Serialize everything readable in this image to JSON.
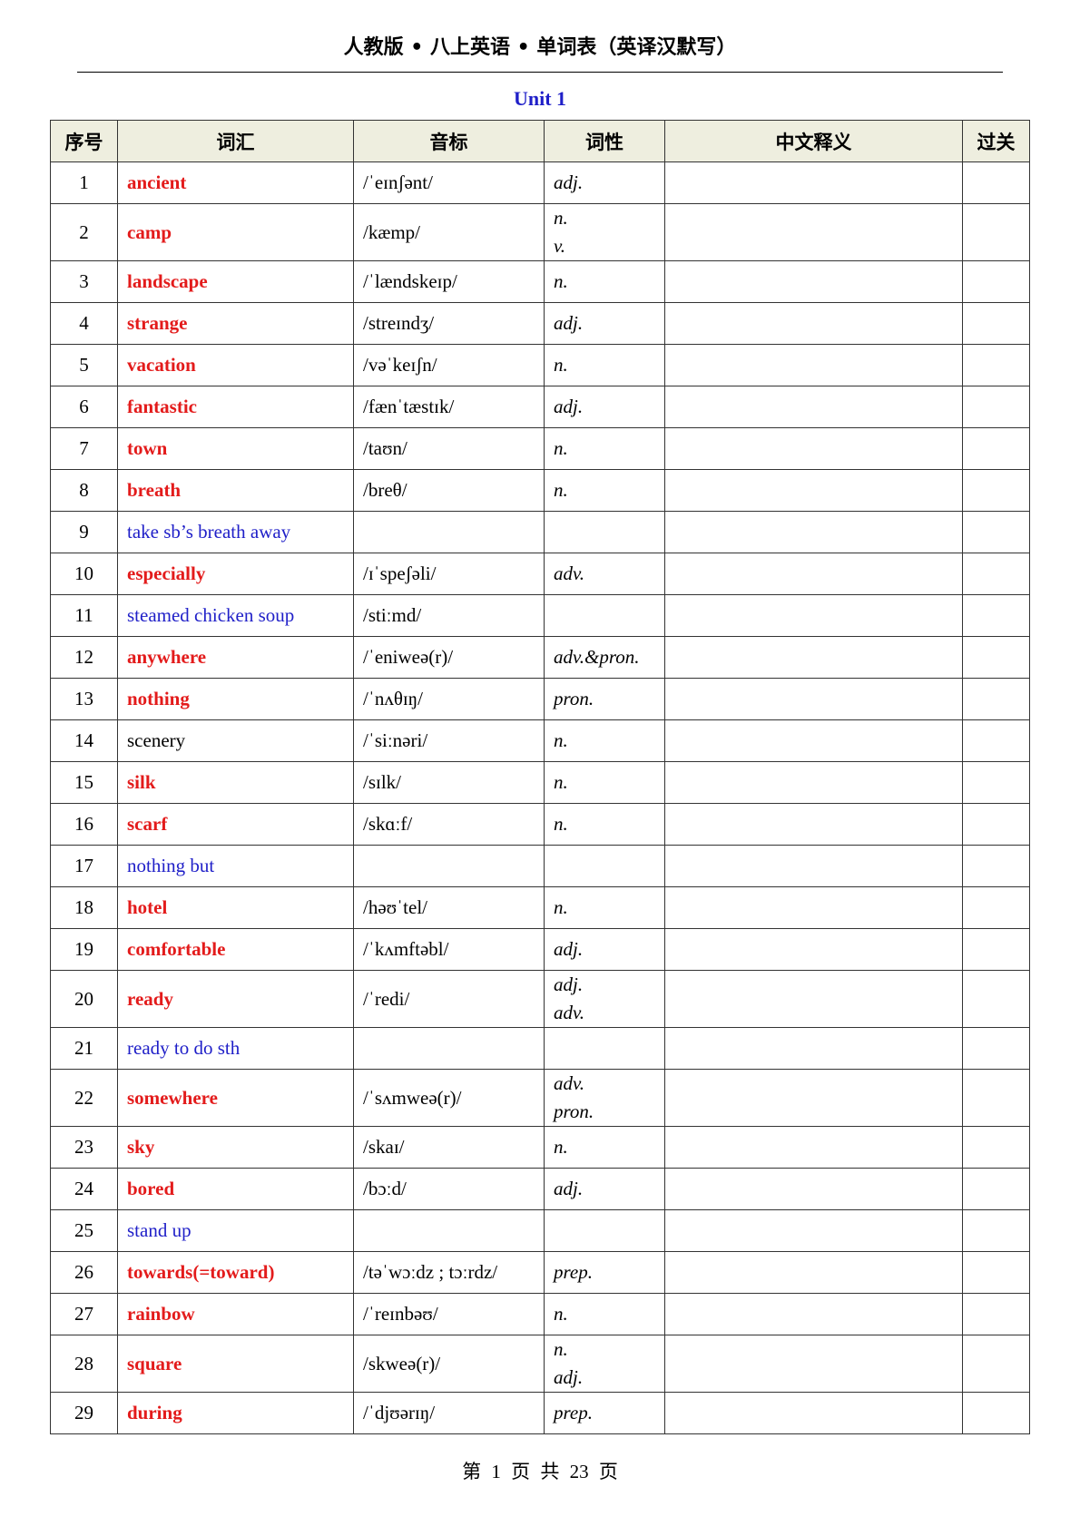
{
  "document": {
    "title": "人教版 • 八上英语 • 单词表（英译汉默写）",
    "unit": "Unit 1",
    "footer": "第 1 页 共 23 页"
  },
  "colors": {
    "bold_word": "#e31b1b",
    "phrase": "#1f1fc8",
    "header_bg": "#eeeedf"
  },
  "table": {
    "headers": [
      "序号",
      "词汇",
      "音标",
      "词性",
      "中文释义",
      "过关"
    ],
    "rows": [
      {
        "no": "1",
        "word": "ancient",
        "style": "red",
        "phonetic": "/ˈeɪnʃənt/",
        "pos": [
          "adj."
        ]
      },
      {
        "no": "2",
        "word": "camp",
        "style": "red",
        "phonetic": "/kæmp/",
        "pos": [
          "n.",
          "v."
        ]
      },
      {
        "no": "3",
        "word": "landscape",
        "style": "red",
        "phonetic": "/ˈlændskeɪp/",
        "pos": [
          "n."
        ]
      },
      {
        "no": "4",
        "word": "strange",
        "style": "red",
        "phonetic": "/streɪndʒ/",
        "pos": [
          "adj."
        ]
      },
      {
        "no": "5",
        "word": "vacation",
        "style": "red",
        "phonetic": "/vəˈkeɪʃn/",
        "pos": [
          "n."
        ]
      },
      {
        "no": "6",
        "word": "fantastic",
        "style": "red",
        "phonetic": "/fænˈtæstɪk/",
        "pos": [
          "adj."
        ]
      },
      {
        "no": "7",
        "word": "town",
        "style": "red",
        "phonetic": "/taʊn/",
        "pos": [
          "n."
        ]
      },
      {
        "no": "8",
        "word": "breath",
        "style": "red",
        "phonetic": "/breθ/",
        "pos": [
          "n."
        ]
      },
      {
        "no": "9",
        "word": "take sb’s breath away",
        "style": "blue",
        "phonetic": "",
        "pos": []
      },
      {
        "no": "10",
        "word": "especially",
        "style": "red",
        "phonetic": "/ɪˈspeʃəli/",
        "pos": [
          "adv."
        ]
      },
      {
        "no": "11",
        "word": "steamed chicken soup",
        "style": "blue",
        "phonetic": "/stiːmd/",
        "pos": []
      },
      {
        "no": "12",
        "word": "anywhere",
        "style": "red",
        "phonetic": "/ˈeniweə(r)/",
        "pos": [
          "adv.&pron."
        ]
      },
      {
        "no": "13",
        "word": "nothing",
        "style": "red",
        "phonetic": "/ˈnʌθɪŋ/",
        "pos": [
          "pron."
        ]
      },
      {
        "no": "14",
        "word": "scenery",
        "style": "black",
        "phonetic": "/ˈsiːnəri/",
        "pos": [
          "n."
        ]
      },
      {
        "no": "15",
        "word": "silk",
        "style": "red",
        "phonetic": "/sɪlk/",
        "pos": [
          "n."
        ]
      },
      {
        "no": "16",
        "word": "scarf",
        "style": "red",
        "phonetic": "/skɑːf/",
        "pos": [
          "n."
        ]
      },
      {
        "no": "17",
        "word": "nothing but",
        "style": "blue",
        "phonetic": "",
        "pos": []
      },
      {
        "no": "18",
        "word": "hotel",
        "style": "red",
        "phonetic": "/həʊˈtel/",
        "pos": [
          "n."
        ]
      },
      {
        "no": "19",
        "word": "comfortable",
        "style": "red",
        "phonetic": "/ˈkʌmftəbl/",
        "pos": [
          "adj."
        ]
      },
      {
        "no": "20",
        "word": "ready",
        "style": "red",
        "phonetic": "/ˈredi/",
        "pos": [
          "adj.",
          "adv."
        ]
      },
      {
        "no": "21",
        "word": "ready to do sth",
        "style": "blue",
        "phonetic": "",
        "pos": []
      },
      {
        "no": "22",
        "word": "somewhere",
        "style": "red",
        "phonetic": "/ˈsʌmweə(r)/",
        "pos": [
          "adv.",
          "pron."
        ]
      },
      {
        "no": "23",
        "word": "sky",
        "style": "red",
        "phonetic": "/skaɪ/",
        "pos": [
          "n."
        ]
      },
      {
        "no": "24",
        "word": "bored",
        "style": "red",
        "phonetic": "/bɔːd/",
        "pos": [
          "adj."
        ]
      },
      {
        "no": "25",
        "word": "stand up",
        "style": "blue",
        "phonetic": "",
        "pos": []
      },
      {
        "no": "26",
        "word": "towards(=toward)",
        "style": "red",
        "phonetic": "/təˈwɔːdz ; tɔːrdz/",
        "pos": [
          "prep."
        ]
      },
      {
        "no": "27",
        "word": "rainbow",
        "style": "red",
        "phonetic": "/ˈreɪnbəʊ/",
        "pos": [
          "n."
        ]
      },
      {
        "no": "28",
        "word": "square",
        "style": "red",
        "phonetic": "/skweə(r)/",
        "pos": [
          "n.",
          "adj."
        ]
      },
      {
        "no": "29",
        "word": "during",
        "style": "red",
        "phonetic": "/ˈdjʊərɪŋ/",
        "pos": [
          "prep."
        ]
      }
    ]
  }
}
